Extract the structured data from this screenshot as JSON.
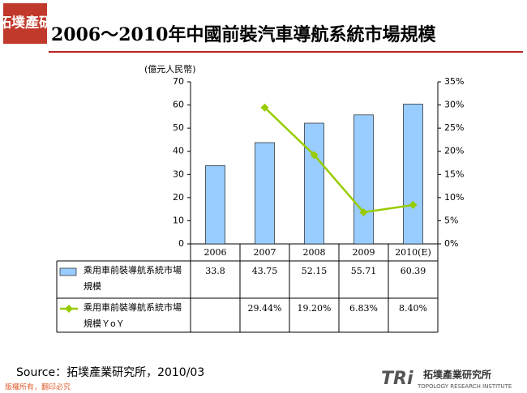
{
  "header": {
    "logo": "拓墣產研"
  },
  "chart_data": {
    "type": "bar-line",
    "title": "2006～2010年中國前裝汽車導航系統市場規模",
    "y_label": "(億元人民幣)",
    "categories": [
      "2006",
      "2007",
      "2008",
      "2009",
      "2010(E)"
    ],
    "series": [
      {
        "name": "乘用車前裝導航系統市場規模",
        "color": "#99ccff",
        "type": "bar",
        "values": [
          33.8,
          43.75,
          52.15,
          55.71,
          60.39
        ]
      },
      {
        "name": "乘用車前裝導航系統市場規模ＹoＹ",
        "color": "#99cc00",
        "type": "line",
        "axis": "y2",
        "values": [
          null,
          29.44,
          19.2,
          6.83,
          8.4
        ],
        "value_labels": [
          null,
          "29.44%",
          "19.20%",
          "6.83%",
          "8.40%"
        ]
      }
    ],
    "ylim": [
      0,
      70
    ],
    "yticks": [
      0,
      10,
      20,
      30,
      40,
      50,
      60,
      70
    ],
    "y2lim": [
      0,
      35
    ],
    "y2ticks": [
      {
        "value": 0,
        "label": "0%"
      },
      {
        "value": 5,
        "label": "5%"
      },
      {
        "value": 10,
        "label": "10%"
      },
      {
        "value": 15,
        "label": "15%"
      },
      {
        "value": 20,
        "label": "20%"
      },
      {
        "value": 25,
        "label": "25%"
      },
      {
        "value": 30,
        "label": "30%"
      },
      {
        "value": 35,
        "label": "35%"
      }
    ],
    "grid": false
  },
  "footer": {
    "source": "Source：拓墣產業研究所，2010/03",
    "copyright": "版權所有，翻印必究",
    "brand": "TRi",
    "institute": "拓墣產業研究所",
    "institute_en": "TOPOLOGY RESEARCH INSTITUTE"
  }
}
